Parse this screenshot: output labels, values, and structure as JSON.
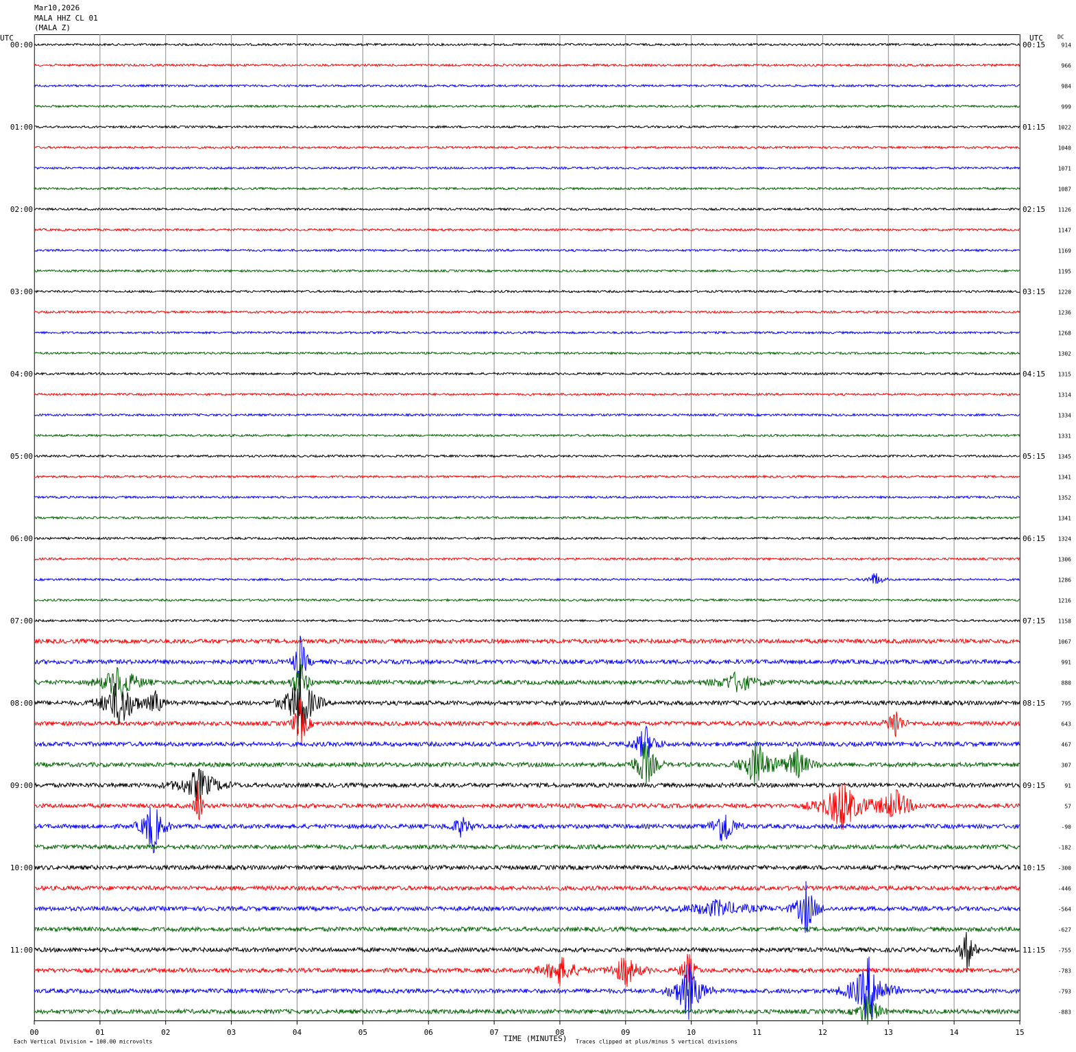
{
  "chart_data": {
    "type": "helicorder",
    "title": [
      "Mar10,2026",
      "MALA HHZ CL 01",
      "(MALA Z)"
    ],
    "utc_label": "UTC",
    "dc_label": "DC",
    "xlabel": "TIME (MINUTES)",
    "xlim": [
      0,
      15
    ],
    "xticks": [
      {
        "value": 0,
        "label": "00"
      },
      {
        "value": 1,
        "label": "01"
      },
      {
        "value": 2,
        "label": "02"
      },
      {
        "value": 3,
        "label": "03"
      },
      {
        "value": 4,
        "label": "04"
      },
      {
        "value": 5,
        "label": "05"
      },
      {
        "value": 6,
        "label": "06"
      },
      {
        "value": 7,
        "label": "07"
      },
      {
        "value": 8,
        "label": "08"
      },
      {
        "value": 9,
        "label": "09"
      },
      {
        "value": 10,
        "label": "10"
      },
      {
        "value": 11,
        "label": "11"
      },
      {
        "value": 12,
        "label": "12"
      },
      {
        "value": 13,
        "label": "13"
      },
      {
        "value": 14,
        "label": "14"
      },
      {
        "value": 15,
        "label": "15"
      }
    ],
    "left_labels": [
      "00:00",
      "01:00",
      "02:00",
      "03:00",
      "04:00",
      "05:00",
      "06:00",
      "07:00",
      "08:00",
      "09:00",
      "10:00",
      "11:00"
    ],
    "right_labels": [
      "00:15",
      "01:15",
      "02:15",
      "03:15",
      "04:15",
      "05:15",
      "06:15",
      "07:15",
      "08:15",
      "09:15",
      "10:15",
      "11:15"
    ],
    "trace_colors": [
      "#000000",
      "#ff0000",
      "#0000ff",
      "#006400"
    ],
    "dc": [
      914,
      966,
      984,
      999,
      1022,
      1040,
      1071,
      1087,
      1126,
      1147,
      1169,
      1195,
      1220,
      1236,
      1268,
      1302,
      1315,
      1314,
      1334,
      1331,
      1345,
      1341,
      1352,
      1341,
      1324,
      1306,
      1286,
      1216,
      1158,
      1067,
      991,
      880,
      795,
      643,
      467,
      307,
      91,
      57,
      -90,
      -182,
      -300,
      -446,
      -564,
      -627,
      -755,
      -783,
      -793,
      -883
    ],
    "scale_note": "Each Vertical Division =  100.00 microvolts",
    "clip_note": "Traces clipped at plus/minus 5 vertical divisions"
  }
}
